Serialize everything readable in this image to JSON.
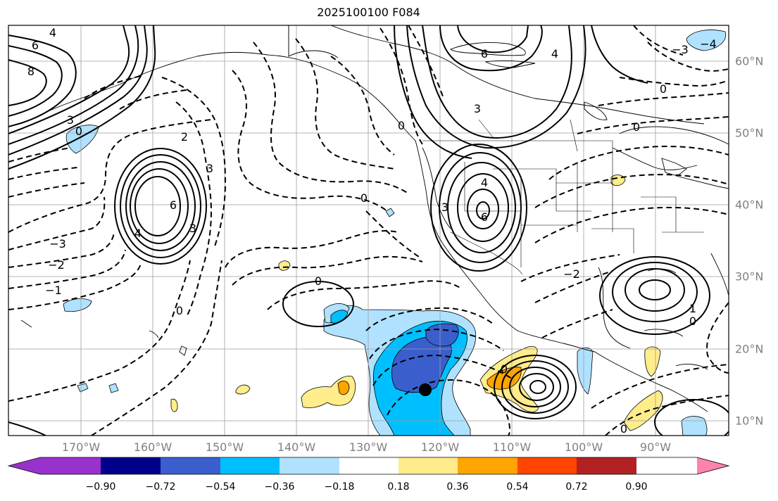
{
  "title": "2025100100 F084",
  "lon_labels": [
    "170°W",
    "160°W",
    "150°W",
    "140°W",
    "130°W",
    "120°W",
    "110°W",
    "100°W",
    "90°W"
  ],
  "lat_labels": [
    "60°N",
    "50°N",
    "40°N",
    "30°N",
    "20°N",
    "10°N"
  ],
  "colorbar": {
    "colors": [
      "#9932cc",
      "#00008b",
      "#3a5fcd",
      "#00bfff",
      "#b0e2ff",
      "#ffffff",
      "#ffec8b",
      "#ffa500",
      "#ff4500",
      "#b22222",
      "#ff82ab"
    ],
    "ticks": [
      "−0.90",
      "−0.72",
      "−0.54",
      "−0.36",
      "−0.18",
      "0.18",
      "0.36",
      "0.54",
      "0.72",
      "0.90"
    ]
  },
  "contour_labels": [
    {
      "id": "l1",
      "text": "4"
    },
    {
      "id": "l2",
      "text": "6"
    },
    {
      "id": "l3",
      "text": "8"
    },
    {
      "id": "l4",
      "text": "3"
    },
    {
      "id": "l5",
      "text": "0"
    },
    {
      "id": "l6",
      "text": "2"
    },
    {
      "id": "l7",
      "text": "3"
    },
    {
      "id": "l8",
      "text": "6"
    },
    {
      "id": "l9",
      "text": "4"
    },
    {
      "id": "l10",
      "text": "3"
    },
    {
      "id": "l11",
      "text": "−3"
    },
    {
      "id": "l12",
      "text": "−2"
    },
    {
      "id": "l13",
      "text": "−1"
    },
    {
      "id": "l14",
      "text": "0"
    },
    {
      "id": "l15",
      "text": "0"
    },
    {
      "id": "l16",
      "text": "0"
    },
    {
      "id": "l17",
      "text": "6"
    },
    {
      "id": "l18",
      "text": "4"
    },
    {
      "id": "l19",
      "text": "3"
    },
    {
      "id": "l20",
      "text": "4"
    },
    {
      "id": "l21",
      "text": "6"
    },
    {
      "id": "l22",
      "text": "3"
    },
    {
      "id": "l23",
      "text": "0"
    },
    {
      "id": "l24",
      "text": "0"
    },
    {
      "id": "l25",
      "text": "−3"
    },
    {
      "id": "l26",
      "text": "−2"
    },
    {
      "id": "l27",
      "text": "1"
    },
    {
      "id": "l28",
      "text": "0"
    },
    {
      "id": "l29",
      "text": "0"
    },
    {
      "id": "l30",
      "text": "0"
    },
    {
      "id": "l31",
      "text": "−4"
    },
    {
      "id": "l32",
      "text": "0"
    }
  ]
}
